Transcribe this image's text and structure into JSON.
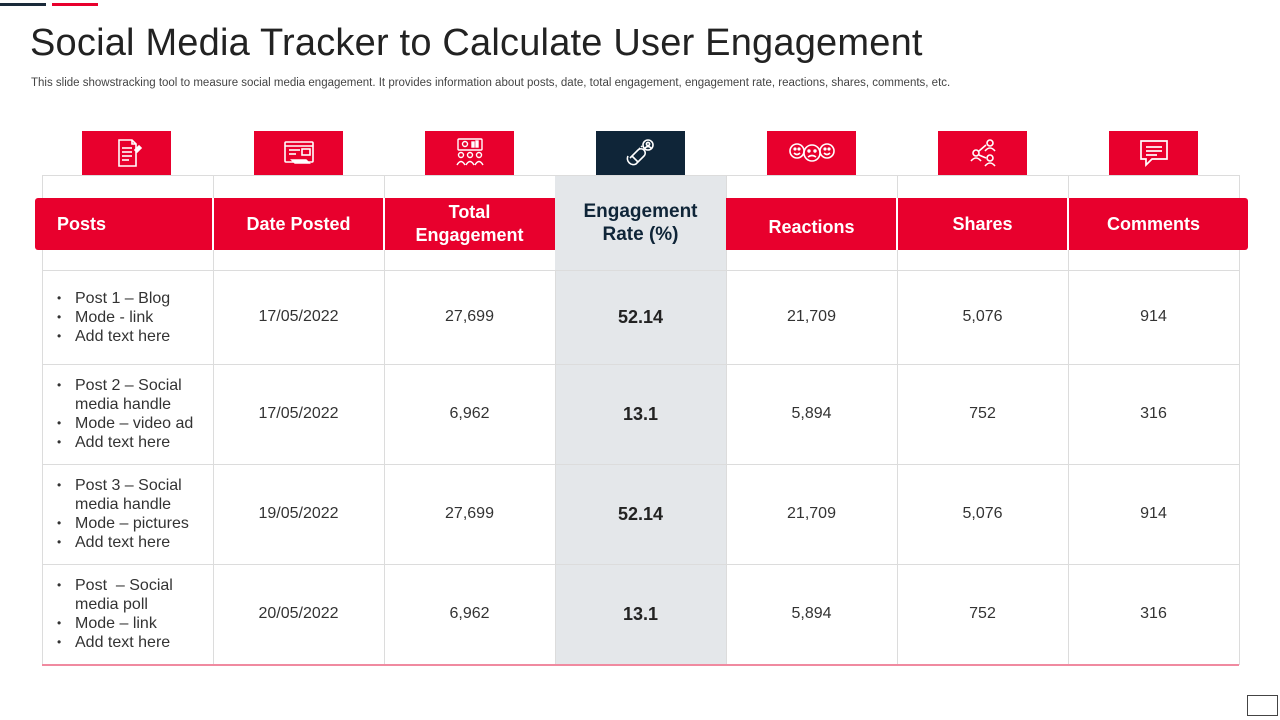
{
  "title": "Social Media Tracker to Calculate User Engagement",
  "subtitle": "This slide showstracking tool to measure social media engagement. It provides information about posts, date, total engagement, engagement rate, reactions, shares, comments, etc.",
  "colors": {
    "accent": "#e8002d",
    "dark": "#0f2538",
    "highlight": "#e4e7ea"
  },
  "icons": [
    "document-icon",
    "browser-form-icon",
    "group-meeting-icon",
    "magnet-user-icon",
    "emoji-faces-icon",
    "share-network-icon",
    "chat-bubble-icon"
  ],
  "columns": {
    "posts": "Posts",
    "date": "Date Posted",
    "total_line1": "Total",
    "total_line2": "Engagement",
    "rate_line1": "Engagement",
    "rate_line2": "Rate (%)",
    "reactions": "Reactions",
    "shares": "Shares",
    "comments": "Comments"
  },
  "rows": [
    {
      "post_lines": [
        "Post 1 – Blog",
        "Mode - link",
        "Add text here"
      ],
      "date": "17/05/2022",
      "total": "27,699",
      "rate": "52.14",
      "reactions": "21,709",
      "shares": "5,076",
      "comments": "914"
    },
    {
      "post_lines": [
        "Post 2 – Social media handle",
        "Mode – video ad",
        "Add text here"
      ],
      "date": "17/05/2022",
      "total": "6,962",
      "rate": "13.1",
      "reactions": "5,894",
      "shares": "752",
      "comments": "316"
    },
    {
      "post_lines": [
        "Post 3 – Social media handle",
        "Mode – pictures",
        "Add text here"
      ],
      "date": "19/05/2022",
      "total": "27,699",
      "rate": "52.14",
      "reactions": "21,709",
      "shares": "5,076",
      "comments": "914"
    },
    {
      "post_lines": [
        "Post  – Social media poll",
        "Mode – link",
        "Add text here"
      ],
      "date": "20/05/2022",
      "total": "6,962",
      "rate": "13.1",
      "reactions": "5,894",
      "shares": "752",
      "comments": "316"
    }
  ]
}
